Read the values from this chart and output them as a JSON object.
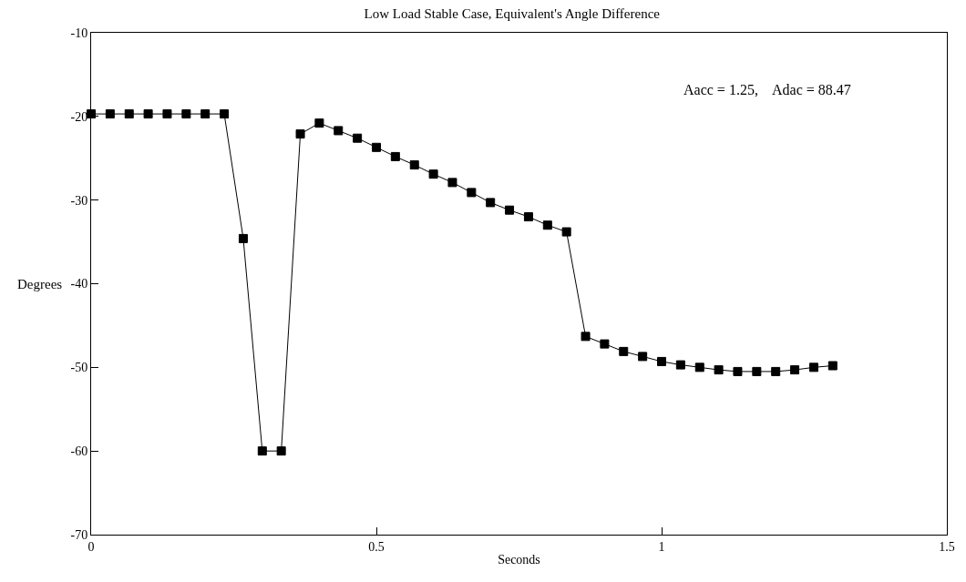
{
  "chart_data": {
    "type": "line",
    "title": "Low Load Stable Case, Equivalent's Angle Difference",
    "xlabel": "Seconds",
    "ylabel": "Degrees",
    "annotations": [
      "Aacc = 1.25,    Adac = 88.47"
    ],
    "x": [
      0,
      0.0333,
      0.0667,
      0.1,
      0.1333,
      0.1667,
      0.2,
      0.2333,
      0.2667,
      0.3,
      0.3333,
      0.3667,
      0.4,
      0.4333,
      0.4667,
      0.5,
      0.5333,
      0.5667,
      0.6,
      0.6333,
      0.6667,
      0.7,
      0.7333,
      0.7667,
      0.8,
      0.8333,
      0.8667,
      0.9,
      0.9333,
      0.9667,
      1,
      1.0333,
      1.0667,
      1.1,
      1.1333,
      1.1667,
      1.2,
      1.2333,
      1.2667,
      1.3
    ],
    "series": [
      {
        "color": "#000000",
        "values": [
          -19.7,
          -19.7,
          -19.7,
          -19.7,
          -19.7,
          -19.7,
          -19.7,
          -19.7,
          -34.6,
          -60,
          -60,
          -22.1,
          -20.8,
          -21.7,
          -22.6,
          -23.7,
          -24.8,
          -25.8,
          -26.9,
          -27.9,
          -29.1,
          -30.3,
          -31.2,
          -32.0,
          -33.0,
          -33.8,
          -46.3,
          -47.2,
          -48.1,
          -48.7,
          -49.3,
          -49.7,
          -50.0,
          -50.3,
          -50.5,
          -50.5,
          -50.5,
          -50.3,
          -50.0,
          -49.8
        ]
      }
    ],
    "xlim": [
      0,
      1.5
    ],
    "xticks": [
      0,
      0.5,
      1,
      1.5
    ],
    "ylim": [
      -70,
      -10
    ],
    "yticks": [
      -10,
      -20,
      -30,
      -40,
      -50,
      -60,
      -70
    ],
    "marker": "square",
    "line_style": "solid"
  }
}
